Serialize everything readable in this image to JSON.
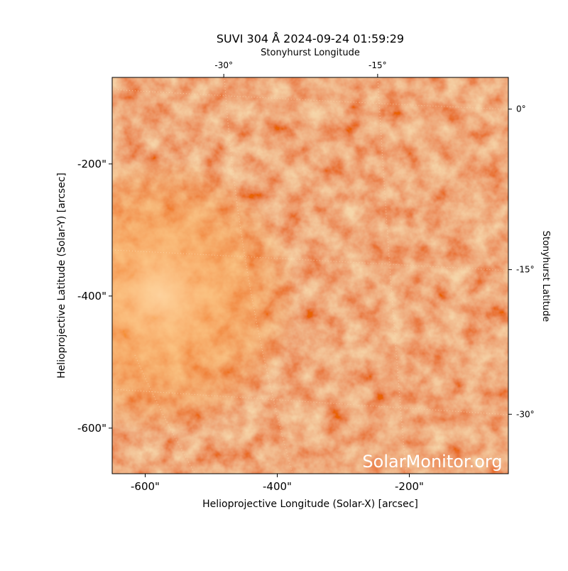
{
  "chart_data": {
    "type": "image",
    "title": "SUVI 304 Å 2024-09-24 01:59:29",
    "xlabel": "Helioprojective Longitude (Solar-X) [arcsec]",
    "ylabel": "Helioprojective Latitude (Solar-Y) [arcsec]",
    "x2label": "Stonyhurst Longitude",
    "y2label": "Stonyhurst Latitude",
    "xlim": [
      -650,
      -50
    ],
    "ylim": [
      -669,
      -69
    ],
    "xticks": [
      {
        "value": -600,
        "label": "-600\""
      },
      {
        "value": -400,
        "label": "-400\""
      },
      {
        "value": -200,
        "label": "-200\""
      }
    ],
    "yticks": [
      {
        "value": -600,
        "label": "-600\""
      },
      {
        "value": -400,
        "label": "-400\""
      },
      {
        "value": -200,
        "label": "-200\""
      }
    ],
    "x2ticks": [
      {
        "value": -481,
        "label": "-30°"
      },
      {
        "value": -248,
        "label": "-15°"
      }
    ],
    "y2ticks": [
      {
        "value": -117,
        "label": "0°"
      },
      {
        "value": -360,
        "label": "-15°"
      },
      {
        "value": -579,
        "label": "-30°"
      }
    ],
    "watermark": "SolarMonitor.org"
  }
}
